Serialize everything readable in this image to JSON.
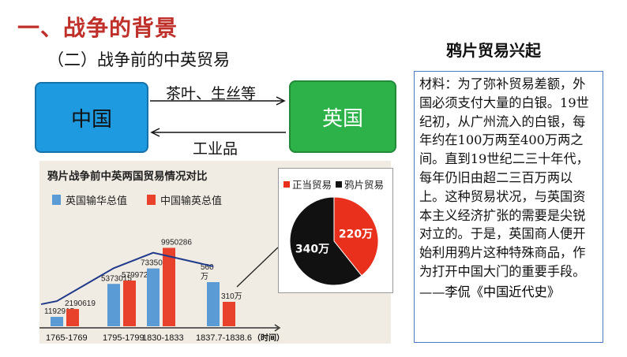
{
  "heading": "一、战争的背景",
  "subheading": "（二）战争前的中英贸易",
  "nodes": {
    "china": "中国",
    "uk": "英国"
  },
  "arrows": {
    "to_uk": "茶叶、生丝等",
    "to_china": "工业品"
  },
  "side_title": "鸦片贸易兴起",
  "quote": {
    "text": "材料：为了弥补贸易差额，外国必须支付大量的白银。19世纪初，从广州流入的白银，每年约在100万两至400万两之间。直到19世纪二三十年代，每年仍旧由超二三百万两以上。这种贸易状况，与英国资本主义经济扩张的需要是尖锐对立的。于是，英国商人便开始利用鸦片这种特殊商品，作为打开中国大门的重要手段。",
    "source": "——李侃《中国近代史》"
  },
  "colors": {
    "heading": "#c0302a",
    "china_box": "#1e9ae0",
    "uk_box": "#2db24a",
    "blue_bar": "#5b9bd5",
    "red_bar": "#e8412c",
    "pie_black": "#111111",
    "pie_red": "#e8301c"
  },
  "chart_data": [
    {
      "type": "bar",
      "title": "鸦片战争前中英两国贸易情况对比",
      "xlabel": "（时间）",
      "categories": [
        "1765-1769",
        "1795-1799",
        "1830-1833",
        "1837.7-1838.6"
      ],
      "series": [
        {
          "name": "英国输华总值",
          "values": [
            1192915,
            5373015,
            7335023,
            5600000
          ],
          "labels": [
            "1192915",
            "5373015",
            "7335023",
            "560\n万"
          ]
        },
        {
          "name": "中国输英总值",
          "values": [
            2190619,
            5799722,
            9950286,
            3100000
          ],
          "labels": [
            "2190619",
            "5799722",
            "9950286",
            "310万"
          ]
        }
      ],
      "ylim": [
        0,
        11000000
      ]
    },
    {
      "type": "pie",
      "legend": [
        "正当贸易",
        "鸦片贸易"
      ],
      "slices": [
        {
          "name": "正当贸易",
          "value": 220,
          "label": "220万"
        },
        {
          "name": "鸦片贸易",
          "value": 340,
          "label": "340万"
        }
      ]
    }
  ]
}
